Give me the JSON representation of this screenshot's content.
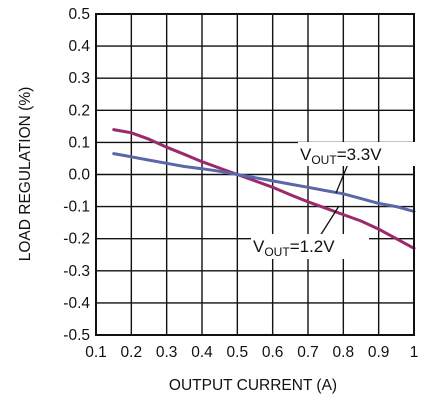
{
  "chart_data": {
    "type": "line",
    "xlabel": "OUTPUT CURRENT (A)",
    "ylabel": "LOAD REGULATION (%)",
    "xlim": [
      0.1,
      1.0
    ],
    "ylim": [
      -0.5,
      0.5
    ],
    "xticks": [
      0.1,
      0.2,
      0.3,
      0.4,
      0.5,
      0.6,
      0.7,
      0.8,
      0.9,
      1.0
    ],
    "xtick_labels": [
      "0.1",
      "0.2",
      "0.3",
      "0.4",
      "0.5",
      "0.6",
      "0.7",
      "0.8",
      "0.9",
      "1"
    ],
    "yticks": [
      0.5,
      0.4,
      0.3,
      0.2,
      0.1,
      0.0,
      -0.1,
      -0.2,
      -0.3,
      -0.4,
      -0.5
    ],
    "ytick_labels": [
      "0.5",
      "0.4",
      "0.3",
      "0.2",
      "0.1",
      "0.0",
      "-0.1",
      "-0.2",
      "-0.3",
      "-0.4",
      "-0.5"
    ],
    "grid": true,
    "series": [
      {
        "name": "VOUT=1.2V",
        "label_main": "V",
        "label_sub": "OUT",
        "label_rest": "=1.2V",
        "color": "#9b2a6b",
        "x": [
          0.15,
          0.2,
          0.25,
          0.3,
          0.35,
          0.4,
          0.45,
          0.5,
          0.55,
          0.6,
          0.65,
          0.7,
          0.75,
          0.8,
          0.85,
          0.9,
          0.95,
          1.0
        ],
        "y": [
          0.14,
          0.13,
          0.11,
          0.085,
          0.063,
          0.04,
          0.02,
          0.0,
          -0.02,
          -0.04,
          -0.063,
          -0.085,
          -0.105,
          -0.125,
          -0.145,
          -0.17,
          -0.2,
          -0.23
        ]
      },
      {
        "name": "VOUT=3.3V",
        "label_main": "V",
        "label_sub": "OUT",
        "label_rest": "=3.3V",
        "color": "#5a67a8",
        "x": [
          0.15,
          0.2,
          0.25,
          0.3,
          0.35,
          0.4,
          0.45,
          0.5,
          0.55,
          0.6,
          0.65,
          0.7,
          0.75,
          0.8,
          0.85,
          0.9,
          0.95,
          1.0
        ],
        "y": [
          0.065,
          0.055,
          0.045,
          0.035,
          0.025,
          0.018,
          0.01,
          0.0,
          -0.01,
          -0.02,
          -0.03,
          -0.04,
          -0.05,
          -0.06,
          -0.075,
          -0.09,
          -0.1,
          -0.115
        ]
      }
    ]
  }
}
